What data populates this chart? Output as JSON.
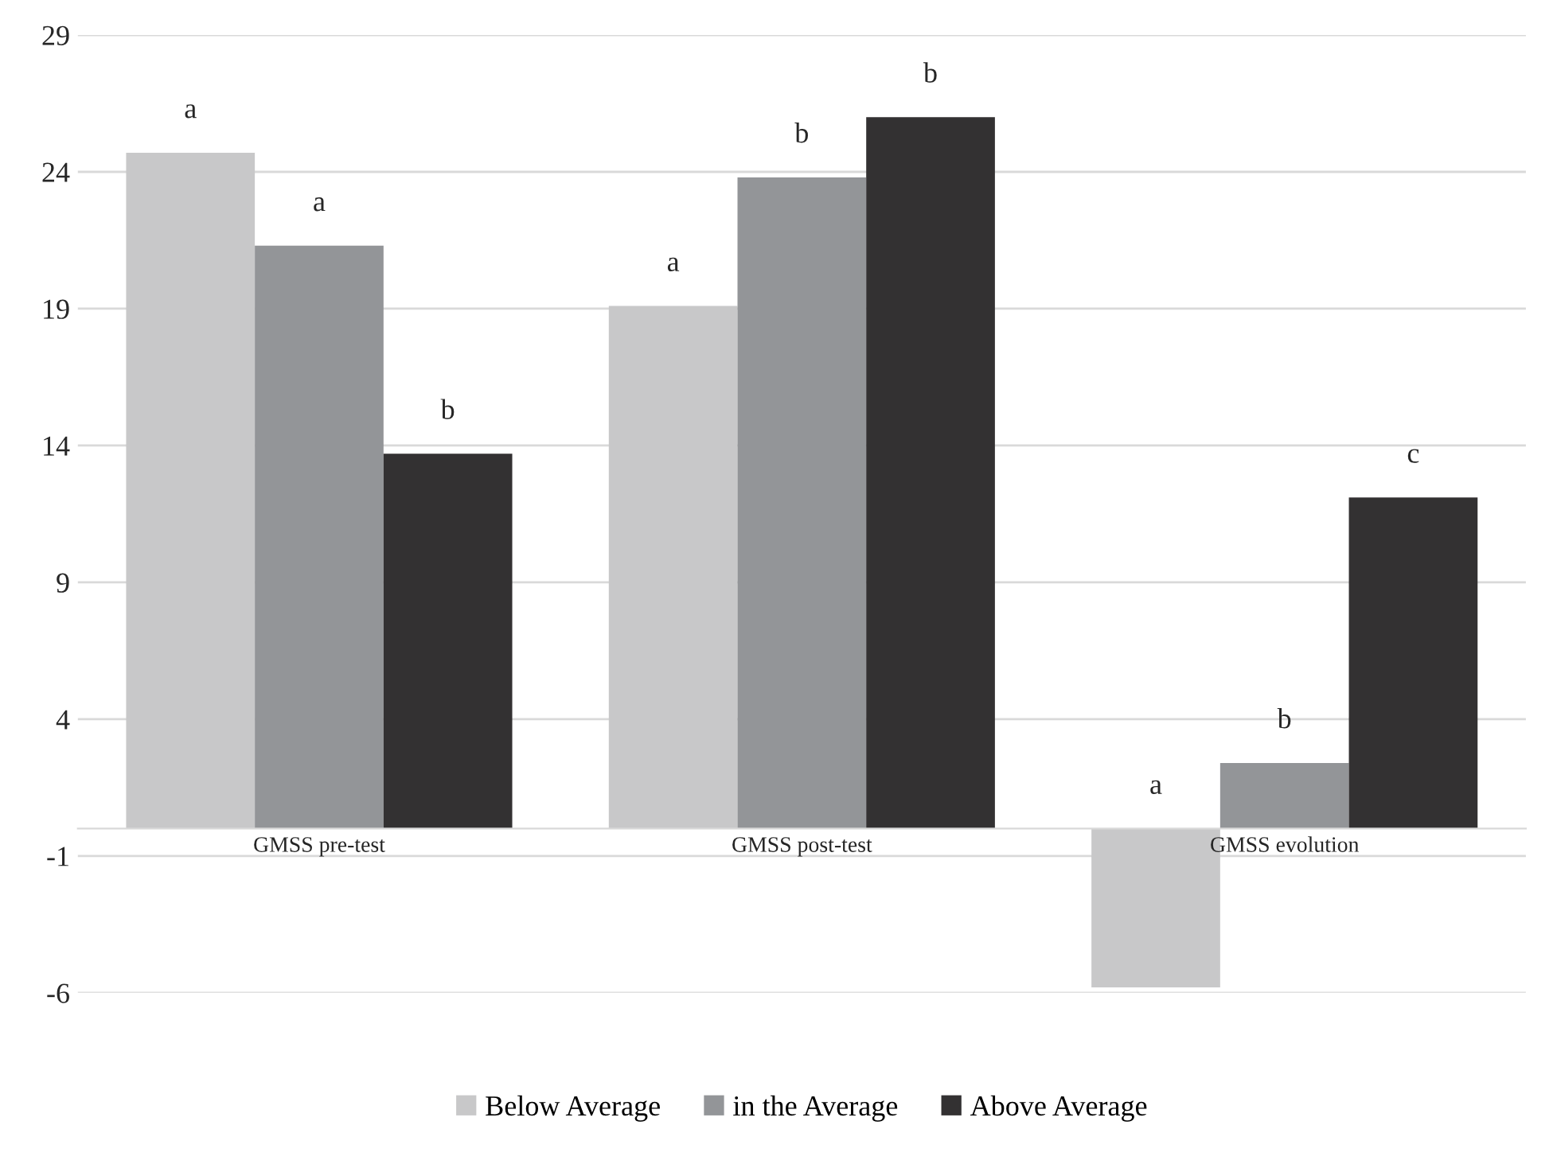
{
  "chart_data": {
    "type": "bar",
    "categories": [
      "GMSS pre-test",
      "GMSS post-test",
      "GMSS evolution"
    ],
    "series": [
      {
        "name": "Below Average",
        "color": "#c8c8c9",
        "values": [
          24.7,
          19.1,
          -5.8
        ]
      },
      {
        "name": "in the Average",
        "color": "#939598",
        "values": [
          21.3,
          23.8,
          2.4
        ]
      },
      {
        "name": "Above Average",
        "color": "#333132",
        "values": [
          13.7,
          26.0,
          12.1
        ]
      }
    ],
    "ylim": [
      -6,
      29
    ],
    "yticks": [
      -6,
      -1,
      4,
      9,
      14,
      19,
      24,
      29
    ],
    "grid": "y",
    "legend": "bottom",
    "annotations": [
      "a",
      "a",
      "b",
      "a",
      "b",
      "b",
      "a",
      "b",
      "c"
    ]
  }
}
